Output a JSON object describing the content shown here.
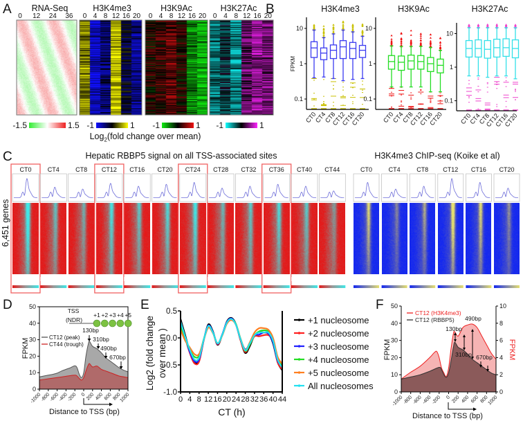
{
  "panel_labels": {
    "a": "A",
    "b": "B",
    "c": "C",
    "d": "D",
    "e": "E",
    "f": "F"
  },
  "panelA": {
    "heatmaps": [
      {
        "title": "RNA-Seq",
        "ticks": [
          "0",
          "12",
          "24",
          "36"
        ],
        "column_means": [],
        "colorbar": {
          "min": "-1.5",
          "max": "1.5",
          "colors": [
            "#33ee33",
            "#ffffff",
            "#ee2222"
          ]
        }
      },
      {
        "title": "H3K4me3",
        "ticks": [
          "0",
          "4",
          "8",
          "12",
          "16",
          "20"
        ],
        "column_means": [
          0.6,
          -0.85,
          -0.5,
          0.85,
          -0.2,
          -0.6
        ],
        "colorbar": {
          "min": "-1",
          "max": "1",
          "colors": [
            "#1010ff",
            "#000000",
            "#ffff00"
          ]
        }
      },
      {
        "title": "H3K9Ac",
        "ticks": [
          "0",
          "4",
          "8",
          "12",
          "16",
          "20"
        ],
        "column_means": [
          0.15,
          0.25,
          0.45,
          0.1,
          -0.6,
          -0.9
        ],
        "colorbar": {
          "min": "-1",
          "max": "1",
          "colors": [
            "#11ee11",
            "#000000",
            "#ee1111"
          ]
        }
      },
      {
        "title": "H3K27Ac",
        "ticks": [
          "0",
          "4",
          "8",
          "12",
          "16",
          "20"
        ],
        "column_means": [
          -0.5,
          -0.2,
          -0.6,
          0.4,
          0.6,
          0.5
        ],
        "colorbar": {
          "min": "-1",
          "max": "1",
          "colors": [
            "#11ffff",
            "#000000",
            "#ff22ff"
          ]
        }
      }
    ],
    "colorbar_title": {
      "base": "Log",
      "sub": "2",
      "rest": "(fold change over mean)"
    }
  },
  "panelC": {
    "title_left": "Hepatic RBBP5 signal on all TSS-associated sites",
    "title_right": "H3K4me3 ChIP-seq (Koike et al)",
    "row_label": "6,451 genes",
    "rbbp5_columns": [
      "CT0",
      "CT4",
      "CT8",
      "CT12",
      "CT16",
      "CT20",
      "CT24",
      "CT28",
      "CT32",
      "CT36",
      "CT40",
      "CT44"
    ],
    "rbbp5_highlighted": [
      "CT0",
      "CT12",
      "CT24",
      "CT36"
    ],
    "rbbp5_relative_peak": [
      1.0,
      0.55,
      0.45,
      0.75,
      0.6,
      0.7,
      0.8,
      0.5,
      0.6,
      0.7,
      0.6,
      0.35
    ],
    "h3k4me3_columns": [
      "CT0",
      "CT4",
      "CT8",
      "CT12",
      "CT16",
      "CT20"
    ],
    "h3k4me3_relative_peak": [
      0.8,
      0.45,
      0.6,
      1.0,
      0.8,
      0.5
    ],
    "colors": {
      "rbbp5_low": "#e41a1a",
      "rbbp5_high": "#40e8e8",
      "h3k4_low": "#1428f0",
      "h3k4_high": "#e6e070",
      "highlight": "#f06060"
    }
  },
  "chart_data": [
    {
      "type": "box",
      "panel": "B",
      "title": "H3K4me3",
      "ylabel": "FPKM",
      "yscale": "log",
      "ylim": [
        0.05,
        20
      ],
      "yticks": [
        "10",
        "1",
        "0.1"
      ],
      "box_color": "#3a3af0",
      "outlier_color": "#c8c000",
      "categories": [
        "CT0",
        "CT4",
        "CT8",
        "CT12",
        "CT16",
        "CT20"
      ],
      "boxes": [
        {
          "median": 2.8,
          "q1": 1.5,
          "q3": 4.2,
          "whisker_low": 0.4,
          "whisker_high": 9,
          "outlier_max": 14
        },
        {
          "median": 2.0,
          "q1": 1.3,
          "q3": 2.8,
          "whisker_low": 0.42,
          "whisker_high": 5.5,
          "outlier_max": 14
        },
        {
          "median": 2.4,
          "q1": 1.4,
          "q3": 3.4,
          "whisker_low": 0.38,
          "whisker_high": 7,
          "outlier_max": 13
        },
        {
          "median": 3.0,
          "q1": 1.4,
          "q3": 4.5,
          "whisker_low": 0.33,
          "whisker_high": 9,
          "outlier_max": 17
        },
        {
          "median": 2.7,
          "q1": 1.4,
          "q3": 4.0,
          "whisker_low": 0.36,
          "whisker_high": 8,
          "outlier_max": 13
        },
        {
          "median": 2.4,
          "q1": 1.5,
          "q3": 3.3,
          "whisker_low": 0.38,
          "whisker_high": 6,
          "outlier_max": 14
        }
      ]
    },
    {
      "type": "box",
      "panel": "B",
      "title": "H3K9Ac",
      "ylabel": "",
      "yscale": "log",
      "ylim": [
        0.05,
        20
      ],
      "yticks": [
        "10",
        "1",
        "0.1"
      ],
      "box_color": "#22dd22",
      "outlier_color": "#ee1111",
      "categories": [
        "CT0",
        "CT4",
        "CT8",
        "CT12",
        "CT16",
        "CT20"
      ],
      "boxes": [
        {
          "median": 1.15,
          "q1": 0.7,
          "q3": 1.7,
          "whisker_low": 0.22,
          "whisker_high": 3.2,
          "outlier_max": 7.5
        },
        {
          "median": 1.1,
          "q1": 0.65,
          "q3": 1.65,
          "whisker_low": 0.22,
          "whisker_high": 3.1,
          "outlier_max": 7.5
        },
        {
          "median": 1.2,
          "q1": 0.7,
          "q3": 1.75,
          "whisker_low": 0.22,
          "whisker_high": 3.1,
          "outlier_max": 9
        },
        {
          "median": 1.15,
          "q1": 0.7,
          "q3": 1.7,
          "whisker_low": 0.22,
          "whisker_high": 3.1,
          "outlier_max": 7.5
        },
        {
          "median": 1.0,
          "q1": 0.6,
          "q3": 1.5,
          "whisker_low": 0.16,
          "whisker_high": 2.9,
          "outlier_max": 7
        },
        {
          "median": 0.9,
          "q1": 0.55,
          "q3": 1.35,
          "whisker_low": 0.16,
          "whisker_high": 2.4,
          "outlier_max": 6
        }
      ]
    },
    {
      "type": "box",
      "panel": "B",
      "title": "H3K27Ac",
      "ylabel": "",
      "yscale": "log",
      "ylim": [
        0.05,
        20
      ],
      "yticks": [
        "10",
        "1",
        "0.1"
      ],
      "box_color": "#33e0e8",
      "outlier_color": "#ee44cc",
      "categories": [
        "CT0",
        "CT4",
        "CT8",
        "CT12",
        "CT16",
        "CT20"
      ],
      "boxes": [
        {
          "median": 3.6,
          "q1": 2.0,
          "q3": 6.2,
          "whisker_low": 0.55,
          "whisker_high": 15,
          "outlier_max": 19
        },
        {
          "median": 3.6,
          "q1": 2.0,
          "q3": 6.5,
          "whisker_low": 0.55,
          "whisker_high": 15,
          "outlier_max": 19
        },
        {
          "median": 3.4,
          "q1": 1.85,
          "q3": 6.2,
          "whisker_low": 0.5,
          "whisker_high": 15,
          "outlier_max": 19
        },
        {
          "median": 3.8,
          "q1": 2.0,
          "q3": 6.8,
          "whisker_low": 0.55,
          "whisker_high": 15,
          "outlier_max": 19
        },
        {
          "median": 3.8,
          "q1": 2.1,
          "q3": 7.0,
          "whisker_low": 0.55,
          "whisker_high": 15,
          "outlier_max": 19
        },
        {
          "median": 3.6,
          "q1": 1.9,
          "q3": 6.5,
          "whisker_low": 0.45,
          "whisker_high": 15,
          "outlier_max": 19
        }
      ]
    },
    {
      "type": "area",
      "panel": "D",
      "xlabel": "Distance to TSS (bp)",
      "ylabel": "FPKM",
      "xlim": [
        -1000,
        1000
      ],
      "ylim": [
        0,
        50
      ],
      "xticks": [
        "-1000",
        "-800",
        "-600",
        "-400",
        "-200",
        "0",
        "200",
        "400",
        "600",
        "800",
        "1000"
      ],
      "yticks": [
        "0",
        "10",
        "20",
        "30",
        "40",
        "50"
      ],
      "series": [
        {
          "name": "CT12 (peak)",
          "color": "#a8a8a8",
          "stroke": "#555555",
          "x": [
            -1000,
            -900,
            -800,
            -700,
            -600,
            -500,
            -400,
            -300,
            -200,
            -150,
            -100,
            -50,
            0,
            50,
            100,
            130,
            200,
            300,
            400,
            500,
            600,
            700,
            800,
            900,
            1000
          ],
          "y": [
            7.5,
            8,
            8.5,
            9,
            9.7,
            11,
            12,
            13,
            14.2,
            13,
            9,
            7,
            10,
            20,
            27,
            29,
            26,
            24.5,
            22,
            19,
            17,
            15,
            13,
            11.5,
            10.5
          ]
        },
        {
          "name": "CT44 (trough)",
          "color": "#b06a6a",
          "stroke": "#cc2222",
          "x": [
            -1000,
            -800,
            -600,
            -400,
            -200,
            -150,
            -100,
            -50,
            0,
            50,
            100,
            130,
            200,
            300,
            400,
            500,
            600,
            700,
            800,
            1000
          ],
          "y": [
            5.5,
            6.3,
            7,
            7.8,
            8.5,
            8,
            6.5,
            5.5,
            7,
            11,
            14.5,
            15.5,
            13.5,
            14,
            12,
            11,
            10,
            9,
            8,
            7
          ]
        }
      ],
      "annotations": [
        "130bp",
        "310bp",
        "490bp",
        "670bp"
      ],
      "diagram": {
        "tss": "TSS",
        "ndr": "(NDR)",
        "nucleosomes": [
          "+1",
          "+2",
          "+3",
          "+4",
          "+5"
        ],
        "color": "#7cc242"
      }
    },
    {
      "type": "line",
      "panel": "E",
      "xlabel": "CT (h)",
      "ylabel_line1": "Log2 (fold change",
      "ylabel_line2": "over mean )",
      "xlim": [
        0,
        44
      ],
      "ylim": [
        -1.0,
        0.5
      ],
      "xticks": [
        "0",
        "4",
        "8",
        "12",
        "16",
        "20",
        "24",
        "28",
        "32",
        "36",
        "40",
        "44"
      ],
      "yticks": [
        "0.5",
        "0.0",
        "-0.5",
        "-1.0"
      ],
      "x": [
        0,
        2,
        4,
        6,
        8,
        10,
        12,
        14,
        16,
        18,
        20,
        22,
        24,
        26,
        28,
        30,
        32,
        34,
        36,
        38,
        40,
        42,
        44
      ],
      "series": [
        {
          "name": "+1 nucleosome",
          "color": "#000000",
          "values": [
            0.35,
            0.05,
            -0.25,
            -0.45,
            -0.42,
            -0.05,
            0.25,
            0.12,
            -0.13,
            0.05,
            0.3,
            0.37,
            0.25,
            -0.05,
            -0.28,
            -0.15,
            0.05,
            0.1,
            0.1,
            0.08,
            -0.1,
            -0.45,
            -0.6
          ]
        },
        {
          "name": "+2 nucleosome",
          "color": "#ff2020",
          "values": [
            0.3,
            0.0,
            -0.28,
            -0.47,
            -0.44,
            -0.05,
            0.22,
            0.1,
            -0.12,
            0.05,
            0.28,
            0.35,
            0.24,
            -0.05,
            -0.26,
            -0.12,
            0.03,
            0.03,
            0.05,
            0.05,
            -0.05,
            -0.45,
            -0.58
          ]
        },
        {
          "name": "+3 nucleosome",
          "color": "#2020ff",
          "values": [
            0.3,
            0.0,
            -0.26,
            -0.43,
            -0.4,
            -0.04,
            0.23,
            0.11,
            -0.11,
            0.06,
            0.29,
            0.36,
            0.24,
            -0.03,
            -0.21,
            -0.1,
            0.05,
            0.06,
            0.1,
            0.08,
            -0.08,
            -0.42,
            -0.52
          ]
        },
        {
          "name": "+4 nucleosome",
          "color": "#22dd22",
          "values": [
            0.22,
            -0.02,
            -0.22,
            -0.35,
            -0.33,
            -0.03,
            0.2,
            0.1,
            -0.1,
            0.05,
            0.27,
            0.34,
            0.25,
            -0.02,
            -0.24,
            -0.12,
            0.05,
            0.12,
            0.14,
            0.12,
            -0.02,
            -0.38,
            -0.5
          ]
        },
        {
          "name": "+5 nucleosome",
          "color": "#ff7f20",
          "values": [
            0.15,
            -0.05,
            -0.18,
            -0.3,
            -0.3,
            -0.04,
            0.19,
            0.09,
            -0.1,
            0.04,
            0.26,
            0.33,
            0.24,
            -0.02,
            -0.22,
            -0.08,
            0.1,
            0.18,
            0.18,
            0.15,
            0.0,
            -0.35,
            -0.48
          ]
        },
        {
          "name": "All nucleosomes",
          "color": "#22e0f0",
          "values": [
            0.3,
            0.02,
            -0.22,
            -0.4,
            -0.37,
            -0.04,
            0.22,
            0.1,
            -0.1,
            0.05,
            0.28,
            0.35,
            0.24,
            -0.03,
            -0.23,
            -0.1,
            0.05,
            0.1,
            0.1,
            0.1,
            -0.05,
            -0.4,
            -0.55
          ]
        }
      ]
    },
    {
      "type": "area",
      "panel": "F",
      "xlabel": "Distance to TSS (bp)",
      "ylabel_left": "FPKM",
      "ylabel_right": "FPKM",
      "xlim": [
        -1000,
        1000
      ],
      "ylim_left": [
        0,
        50
      ],
      "ylim_right": [
        0,
        10
      ],
      "xticks": [
        "-1000",
        "-800",
        "-600",
        "-400",
        "-200",
        "0",
        "200",
        "400",
        "600",
        "800",
        "1000"
      ],
      "yticks_left": [
        "0",
        "10",
        "20",
        "30",
        "40",
        "50"
      ],
      "yticks_right": [
        "0",
        "2",
        "4",
        "6",
        "8",
        "10"
      ],
      "series": [
        {
          "name": "CT12 (H3K4me3)",
          "axis": "right",
          "color": "#f6b4b4",
          "stroke": "#ee2020",
          "x": [
            -1000,
            -800,
            -600,
            -400,
            -300,
            -250,
            -200,
            -150,
            -100,
            -50,
            0,
            50,
            100,
            130,
            200,
            300,
            400,
            500,
            600,
            700,
            800,
            900,
            1000
          ],
          "y": [
            1.5,
            2.3,
            3.0,
            4.0,
            4.6,
            4.7,
            4.0,
            2.8,
            2.2,
            1.8,
            2.8,
            5.0,
            6.8,
            7.0,
            6.5,
            7.5,
            7.8,
            7.9,
            7.5,
            6.5,
            5.5,
            4.5,
            3.8
          ]
        },
        {
          "name": "CT12 (RBBP5)",
          "axis": "left",
          "color": "#8b5a5a",
          "stroke": "#333333",
          "x": [
            -1000,
            -800,
            -600,
            -400,
            -200,
            -150,
            -100,
            -50,
            0,
            50,
            100,
            130,
            200,
            300,
            400,
            500,
            600,
            700,
            800,
            900,
            1000
          ],
          "y": [
            7.5,
            8.7,
            10,
            12,
            14.3,
            13,
            10,
            8.5,
            11,
            18,
            26,
            29,
            26,
            24.5,
            22,
            19,
            17,
            15,
            13,
            11,
            10
          ]
        }
      ],
      "annotations": [
        "130bp",
        "490bp",
        "310bp",
        "670bp"
      ]
    }
  ]
}
